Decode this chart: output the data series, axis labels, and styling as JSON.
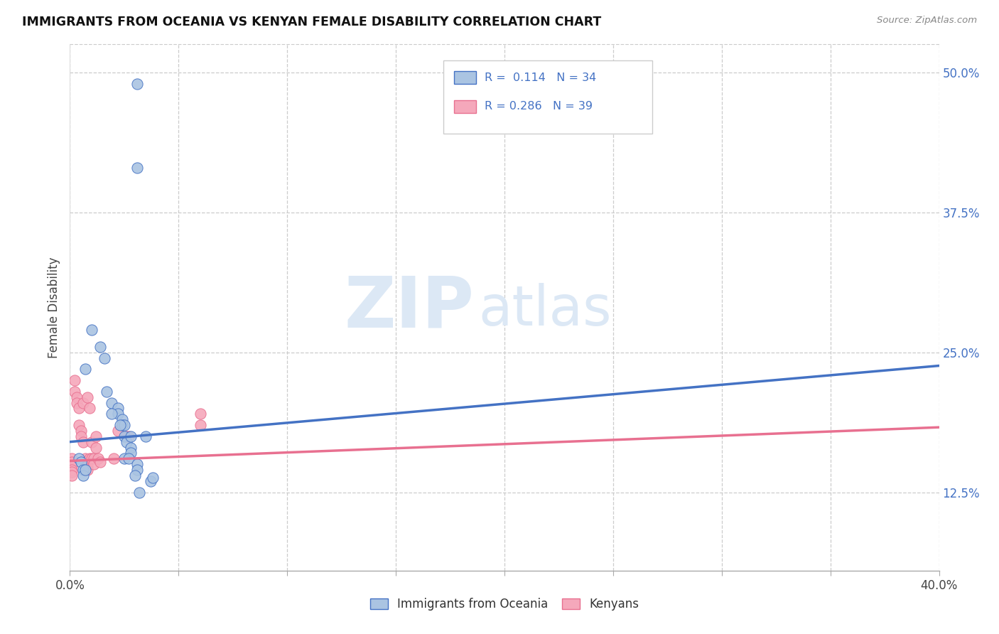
{
  "title": "IMMIGRANTS FROM OCEANIA VS KENYAN FEMALE DISABILITY CORRELATION CHART",
  "source": "Source: ZipAtlas.com",
  "ylabel": "Female Disability",
  "legend_blue_r": "R =  0.114",
  "legend_blue_n": "N = 34",
  "legend_pink_r": "R = 0.286",
  "legend_pink_n": "N = 39",
  "legend_label_blue": "Immigrants from Oceania",
  "legend_label_pink": "Kenyans",
  "color_blue": "#aac4e2",
  "color_pink": "#f5a8bb",
  "color_line_blue": "#4472c4",
  "color_line_pink": "#e87090",
  "color_axis_right": "#4472c4",
  "watermark_zip": "ZIP",
  "watermark_atlas": "atlas",
  "blue_scatter_x": [
    0.031,
    0.031,
    0.01,
    0.014,
    0.007,
    0.016,
    0.017,
    0.019,
    0.022,
    0.022,
    0.024,
    0.024,
    0.025,
    0.025,
    0.026,
    0.028,
    0.028,
    0.025,
    0.027,
    0.031,
    0.031,
    0.03,
    0.037,
    0.032,
    0.038,
    0.004,
    0.005,
    0.006,
    0.006,
    0.007,
    0.019,
    0.023,
    0.035,
    0.028
  ],
  "blue_scatter_y": [
    0.49,
    0.415,
    0.27,
    0.255,
    0.235,
    0.245,
    0.215,
    0.205,
    0.2,
    0.195,
    0.19,
    0.185,
    0.185,
    0.175,
    0.17,
    0.165,
    0.16,
    0.155,
    0.155,
    0.15,
    0.145,
    0.14,
    0.135,
    0.125,
    0.138,
    0.155,
    0.152,
    0.145,
    0.14,
    0.145,
    0.195,
    0.185,
    0.175,
    0.175
  ],
  "pink_scatter_x": [
    0.001,
    0.001,
    0.001,
    0.001,
    0.001,
    0.001,
    0.002,
    0.002,
    0.003,
    0.003,
    0.004,
    0.004,
    0.005,
    0.005,
    0.006,
    0.006,
    0.007,
    0.007,
    0.007,
    0.007,
    0.008,
    0.008,
    0.008,
    0.009,
    0.009,
    0.01,
    0.01,
    0.011,
    0.011,
    0.012,
    0.012,
    0.013,
    0.014,
    0.02,
    0.022,
    0.026,
    0.027,
    0.06,
    0.06
  ],
  "pink_scatter_y": [
    0.155,
    0.152,
    0.148,
    0.145,
    0.143,
    0.14,
    0.225,
    0.215,
    0.21,
    0.205,
    0.2,
    0.185,
    0.18,
    0.175,
    0.205,
    0.17,
    0.155,
    0.152,
    0.148,
    0.145,
    0.21,
    0.148,
    0.145,
    0.2,
    0.155,
    0.17,
    0.155,
    0.155,
    0.15,
    0.175,
    0.165,
    0.155,
    0.152,
    0.155,
    0.18,
    0.175,
    0.175,
    0.195,
    0.185
  ],
  "xlim": [
    0.0,
    0.4
  ],
  "ylim": [
    0.055,
    0.525
  ],
  "blue_line_x": [
    0.0,
    0.4
  ],
  "blue_line_y": [
    0.17,
    0.238
  ],
  "pink_line_x": [
    0.0,
    0.4
  ],
  "pink_line_y": [
    0.153,
    0.183
  ],
  "y_ticks": [
    0.125,
    0.25,
    0.375,
    0.5
  ],
  "x_ticks": [
    0.0,
    0.05,
    0.1,
    0.15,
    0.2,
    0.25,
    0.3,
    0.35,
    0.4
  ]
}
